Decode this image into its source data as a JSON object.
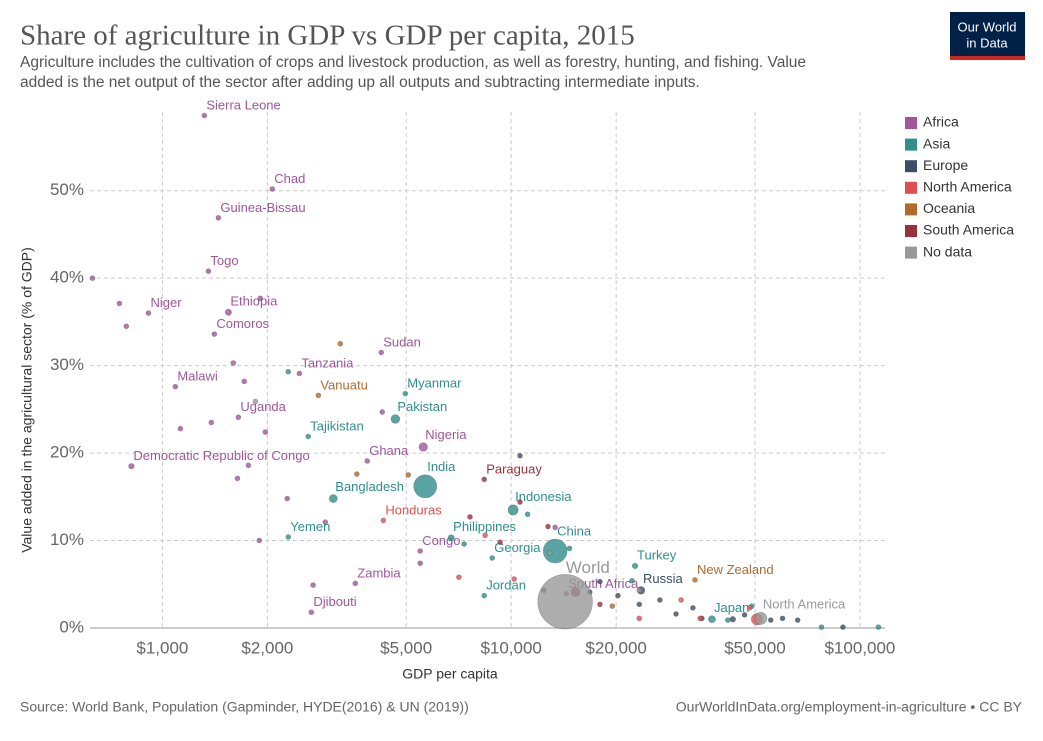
{
  "chart_data": {
    "type": "scatter",
    "title": "Share of agriculture in GDP vs GDP per capita, 2015",
    "subtitle": [
      "Agriculture includes the cultivation of crops and livestock production, as well as forestry, hunting, and fishing. Value",
      "added is the net output of the sector after adding up all outputs and subtracting intermediate inputs."
    ],
    "logo": [
      "Our World",
      "in Data"
    ],
    "x_label": "GDP per capita",
    "y_label": "Value added in the agricultural sector (% of GDP)",
    "source": "Source: World Bank, Population (Gapminder, HYDE(2016) & UN (2019))",
    "credit": "OurWorldInData.org/employment-in-agriculture • CC BY",
    "x_log": true,
    "grid": true,
    "legend": "right",
    "xlim": [
      620,
      118000
    ],
    "ylim": [
      0,
      59
    ],
    "xticks": [
      {
        "value": 1000,
        "label": "$1,000"
      },
      {
        "value": 2000,
        "label": "$2,000"
      },
      {
        "value": 5000,
        "label": "$5,000"
      },
      {
        "value": 10000,
        "label": "$10,000"
      },
      {
        "value": 20000,
        "label": "$20,000"
      },
      {
        "value": 50000,
        "label": "$50,000"
      },
      {
        "value": 100000,
        "label": "$100,000"
      }
    ],
    "yticks": [
      {
        "value": 0,
        "label": "0%"
      },
      {
        "value": 10,
        "label": "10%"
      },
      {
        "value": 20,
        "label": "20%"
      },
      {
        "value": 30,
        "label": "30%"
      },
      {
        "value": 40,
        "label": "40%"
      },
      {
        "value": 50,
        "label": "50%"
      }
    ],
    "series": [
      {
        "name": "Africa",
        "color": "#a2559c",
        "x": [
          1319,
          2066,
          1447,
          1355,
          912,
          1546,
          1409,
          4242,
          2470,
          1089,
          1651,
          5597,
          3866,
          815,
          5485,
          3573,
          2673,
          14380,
          630,
          753,
          788,
          1909,
          1597,
          1717,
          1126,
          1381,
          1972,
          1764,
          1641,
          1896,
          2280,
          2930,
          2705,
          5485,
          13370,
          4270
        ],
        "values": [
          58.6,
          50.2,
          46.9,
          40.8,
          36.0,
          36.1,
          33.6,
          31.5,
          29.1,
          27.6,
          24.1,
          20.7,
          19.1,
          18.5,
          8.8,
          5.1,
          1.8,
          3.9,
          40.0,
          37.1,
          34.5,
          37.7,
          30.3,
          28.2,
          22.8,
          23.5,
          22.4,
          18.6,
          17.1,
          10.0,
          14.8,
          12.1,
          4.9,
          7.4,
          11.5,
          24.7
        ],
        "population": [
          7,
          14,
          2,
          8,
          20,
          100,
          1,
          39,
          53,
          17,
          40,
          180,
          27,
          76,
          5,
          16,
          1,
          55,
          11,
          4,
          2,
          12,
          8,
          6,
          5,
          10,
          15,
          7,
          3,
          2,
          12,
          9,
          2,
          2,
          1,
          3
        ],
        "labels": [
          "Sierra Leone",
          "Chad",
          "Guinea-Bissau",
          "Togo",
          "Niger",
          "Ethiopia",
          "Comoros",
          "Sudan",
          "Tanzania",
          "Malawi",
          "Uganda",
          "Nigeria",
          "Ghana",
          "Democratic Republic of Congo",
          "Congo",
          "Zambia",
          "Djibouti",
          "South Africa",
          null,
          null,
          null,
          null,
          null,
          null,
          null,
          null,
          null,
          null,
          null,
          null,
          null,
          null,
          null,
          null,
          null,
          null
        ]
      },
      {
        "name": "Asia",
        "color": "#2f8f8c",
        "x": [
          4970,
          4656,
          2619,
          5670,
          3090,
          10130,
          2296,
          6730,
          13370,
          8825,
          22650,
          8370,
          37650,
          2296,
          14700,
          22210,
          49000,
          41800,
          77600,
          113000,
          11150,
          7330
        ],
        "values": [
          26.8,
          23.9,
          21.9,
          16.2,
          14.8,
          13.5,
          10.4,
          10.3,
          8.8,
          8.0,
          7.1,
          3.7,
          1.0,
          29.3,
          9.1,
          5.4,
          2.5,
          0.9,
          0.1,
          0.1,
          13.0,
          9.6
        ],
        "population": [
          53,
          190,
          8,
          1300,
          160,
          258,
          27,
          102,
          1400,
          4,
          78,
          9,
          127,
          6,
          30,
          18,
          5,
          4,
          2,
          2,
          4,
          6
        ],
        "labels": [
          "Myanmar",
          "Pakistan",
          "Tajikistan",
          "India",
          "Bangladesh",
          "Indonesia",
          "Yemen",
          "Philippines",
          "China",
          "Georgia",
          "Turkey",
          "Jordan",
          "Japan",
          null,
          null,
          null,
          null,
          null,
          null,
          null,
          null,
          null
        ]
      },
      {
        "name": "Europe",
        "color": "#3c4e66",
        "x": [
          23570,
          10600,
          17970,
          20240,
          23300,
          26690,
          29700,
          33200,
          35200,
          43200,
          46700,
          55500,
          60000,
          66300,
          89400,
          12400,
          16800
        ],
        "values": [
          4.3,
          19.7,
          5.3,
          3.7,
          2.7,
          3.2,
          1.6,
          2.3,
          1.1,
          1.0,
          1.5,
          0.9,
          1.1,
          0.9,
          0.1,
          4.3,
          4.1
        ],
        "population": [
          144,
          2,
          7,
          10,
          38,
          11,
          46,
          60,
          65,
          82,
          17,
          9,
          5,
          5,
          1,
          4,
          20
        ],
        "labels": [
          "Russia",
          null,
          null,
          null,
          null,
          null,
          null,
          null,
          null,
          null,
          null,
          null,
          null,
          null,
          null,
          null,
          null
        ]
      },
      {
        "name": "North America",
        "color": "#e04f4f",
        "x": [
          4300,
          50700,
          8420,
          10200,
          7080,
          23300,
          30700,
          34800,
          48300
        ],
        "values": [
          12.3,
          1.0,
          10.6,
          5.6,
          5.8,
          1.1,
          3.2,
          1.1,
          2.3
        ],
        "population": [
          9,
          320,
          6,
          4,
          11,
          4,
          1,
          1,
          36
        ],
        "labels": [
          "Honduras",
          null,
          null,
          null,
          null,
          null,
          null,
          null,
          null
        ]
      },
      {
        "name": "Oceania",
        "color": "#b16a2c",
        "x": [
          2800,
          33650,
          3236,
          3610,
          5070,
          19500
        ],
        "values": [
          26.6,
          5.5,
          32.5,
          17.6,
          17.5,
          2.5
        ],
        "population": [
          0.3,
          4.6,
          0.5,
          0.6,
          0.9,
          1
        ],
        "labels": [
          "Vanuatu",
          "New Zealand",
          null,
          null,
          null,
          null
        ]
      },
      {
        "name": "South America",
        "color": "#9a2f3d",
        "x": [
          8370,
          10600,
          7620,
          12750,
          15300,
          17970,
          9300
        ],
        "values": [
          17.0,
          14.4,
          12.7,
          11.6,
          4.1,
          2.7,
          9.8
        ],
        "population": [
          7,
          16,
          11,
          31,
          205,
          43,
          10
        ],
        "labels": [
          "Paraguay",
          null,
          null,
          null,
          null,
          null,
          null
        ]
      },
      {
        "name": "No data",
        "color": "#999999",
        "x": [
          14280,
          52000,
          1848,
          12900,
          23300
        ],
        "values": [
          3.0,
          1.1,
          25.9,
          8.6,
          4.3
        ],
        "population": [
          7300,
          360,
          2,
          3,
          2
        ],
        "labels": [
          "World",
          "North America",
          null,
          null,
          null
        ]
      }
    ]
  }
}
